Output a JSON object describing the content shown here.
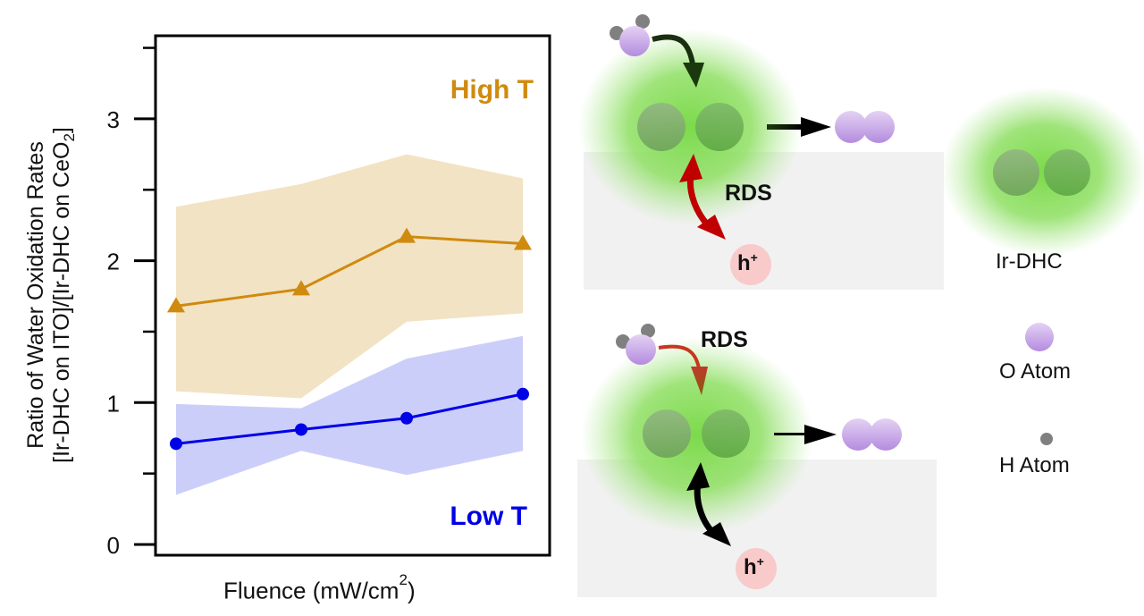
{
  "chart_data": {
    "type": "line",
    "title": "",
    "xlabel": "Fluence (mW/cm",
    "xlabel_sup": "2",
    "xlabel_close": ")",
    "ylabel_line1": "Ratio of Water Oxidation Rates",
    "ylabel_line2": "[Ir-DHC on ITO]/[Ir-DHC on CeO",
    "ylabel_sub": "2",
    "ylabel_close": "]",
    "ylim": [
      0,
      3.55
    ],
    "yticks_major": [
      0,
      1,
      2,
      3
    ],
    "ytick_labels": [
      "0",
      "1",
      "2",
      "3"
    ],
    "yticks_minor": [
      0.5,
      1.5,
      2.5,
      3.5
    ],
    "x_index": [
      1,
      2,
      3,
      4
    ],
    "xticks_shown": false,
    "grid": false,
    "series": [
      {
        "name": "High T",
        "color": "#D08A0E",
        "band_color": "#F2E3C4",
        "marker": "triangle",
        "values": [
          1.68,
          1.8,
          2.17,
          2.12
        ],
        "upper": [
          2.38,
          2.54,
          2.75,
          2.58
        ],
        "lower": [
          1.08,
          1.03,
          1.57,
          1.63
        ]
      },
      {
        "name": "Low T",
        "color": "#0000E6",
        "band_color": "#C3C6F9",
        "marker": "circle",
        "values": [
          0.71,
          0.81,
          0.89,
          1.06
        ],
        "upper": [
          0.99,
          0.96,
          1.31,
          1.47
        ],
        "lower": [
          0.35,
          0.66,
          0.49,
          0.66
        ]
      }
    ],
    "annotations": [
      {
        "text": "High T",
        "color": "#D08A0E",
        "position": "top-right"
      },
      {
        "text": "Low T",
        "color": "#0000E6",
        "position": "bottom-right"
      }
    ]
  },
  "diagram": {
    "top_panel": {
      "rds_label": "RDS",
      "hole_label": "h",
      "hole_sup": "+",
      "rds_arrow_color": "#C00000"
    },
    "bottom_panel": {
      "rds_label": "RDS",
      "hole_label": "h",
      "hole_sup": "+",
      "rds_arrow_color": "#C0392B"
    },
    "legend": [
      {
        "label": "Ir-DHC",
        "icon": "ir-dhc-dimer-icon"
      },
      {
        "label": "O Atom",
        "icon": "o-atom-icon"
      },
      {
        "label": "H Atom",
        "icon": "h-atom-icon"
      }
    ],
    "colors": {
      "green_glow": "#7BDA4A",
      "ir_atom": "#6FB24F",
      "o_atom": "#C7A6E6",
      "h_atom": "#888888",
      "hole": "#F8CACA",
      "substrate": "#F1F1F1"
    }
  }
}
